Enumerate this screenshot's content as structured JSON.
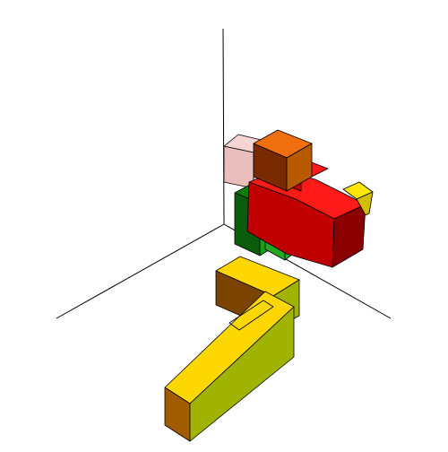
{
  "scene": {
    "background": "#ffffff",
    "axis_color": "#000000",
    "edge_color": "#000000",
    "blocks": [
      {
        "name": "pink-block",
        "colors": {
          "top": "#f2c6c6",
          "left": "#e4a8a8",
          "right": "#f0b8b8"
        },
        "opacity": 0.75
      },
      {
        "name": "dark-green-block",
        "colors": {
          "top": "#0f7a0f",
          "left": "#0a5c0a",
          "right": "#18a018"
        }
      },
      {
        "name": "light-green-block",
        "colors": {
          "top": "#2dbd2d",
          "left": "#23a823",
          "right": "#1fb01f"
        }
      },
      {
        "name": "orange-cube",
        "colors": {
          "top": "#f07010",
          "left": "#7a2a00",
          "right": "#b85a00"
        }
      },
      {
        "name": "red-block",
        "colors": {
          "top": "#ff1a1a",
          "left": "#c00000",
          "right": "#8a0000"
        }
      },
      {
        "name": "small-yellow-block",
        "colors": {
          "top": "#ffe600",
          "left": "#d2c000",
          "right": "#9f9a00"
        }
      },
      {
        "name": "yellow-upper-block",
        "colors": {
          "top": "#ffd700",
          "left": "#7a4400",
          "right": "#9fb300"
        }
      },
      {
        "name": "yellow-lower-block",
        "colors": {
          "top": "#ffd700",
          "left": "#a15c00",
          "right": "#9fb300"
        }
      }
    ]
  }
}
